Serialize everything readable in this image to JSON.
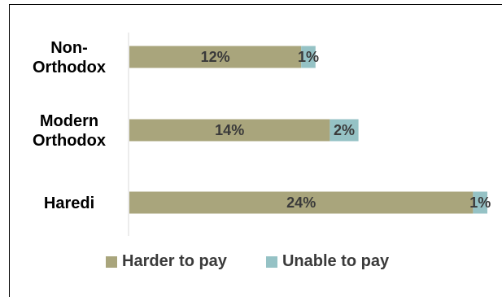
{
  "chart_data": {
    "type": "bar",
    "orientation": "horizontal",
    "stacked": true,
    "categories": [
      "Non-Orthodox",
      "Modern Orthodox",
      "Haredi"
    ],
    "category_lines": [
      [
        "Non-",
        "Orthodox"
      ],
      [
        "Modern",
        "Orthodox"
      ],
      [
        "Haredi"
      ]
    ],
    "series": [
      {
        "name": "Harder to pay",
        "values": [
          12,
          14,
          24
        ],
        "labels": [
          "12%",
          "14%",
          "24%"
        ],
        "color": "#a9a57c"
      },
      {
        "name": "Unable to pay",
        "values": [
          1,
          2,
          1
        ],
        "labels": [
          "1%",
          "2%",
          "1%"
        ],
        "color": "#95c2c5"
      }
    ],
    "xlim": [
      0,
      25
    ],
    "grid": false,
    "legend": "bottom"
  }
}
